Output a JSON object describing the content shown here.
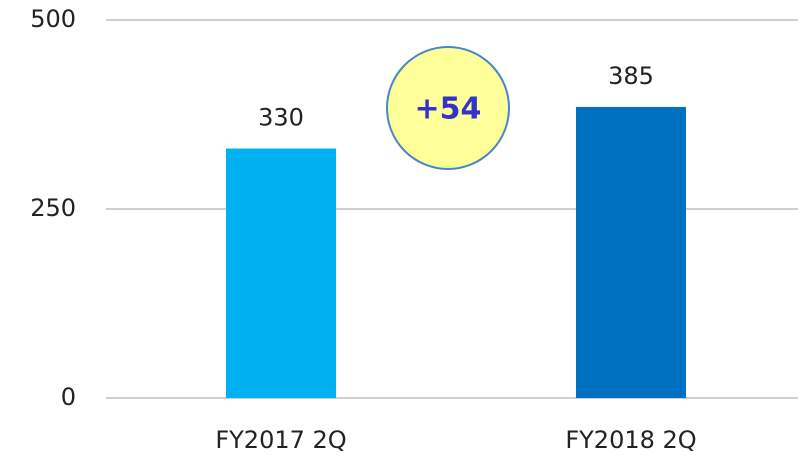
{
  "chart_data": {
    "type": "bar",
    "categories": [
      "FY2017 2Q",
      "FY2018 2Q"
    ],
    "values": [
      330,
      385
    ],
    "colors": [
      "#00b0f0",
      "#0070c0"
    ],
    "ylim": [
      0,
      500
    ],
    "yticks": [
      0,
      250,
      500
    ],
    "grid": true,
    "annotation": "+54"
  }
}
